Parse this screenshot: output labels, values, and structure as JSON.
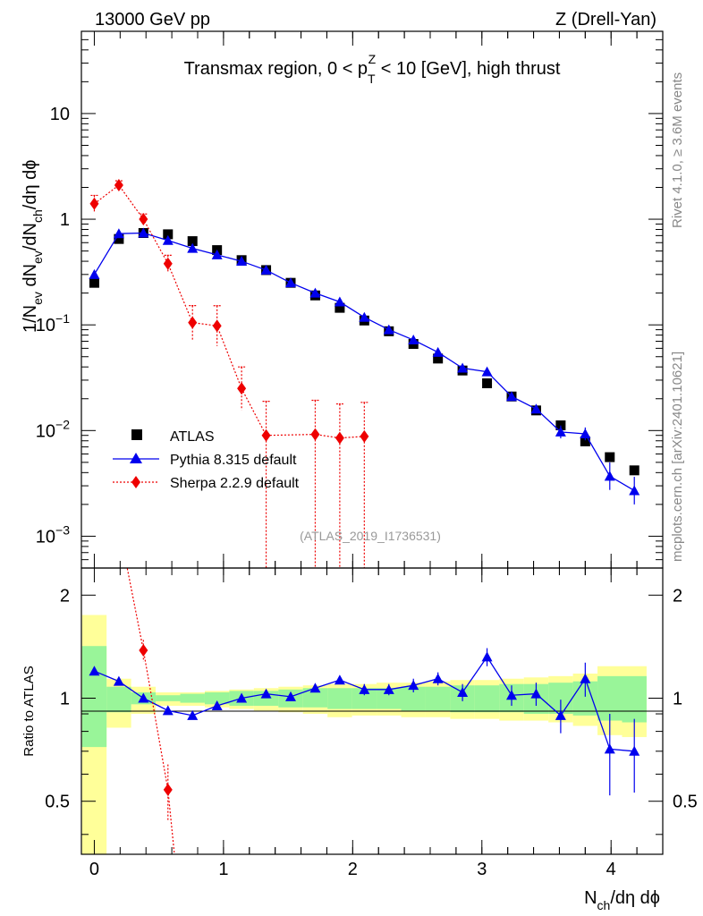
{
  "header": {
    "left": "13000 GeV pp",
    "right": "Z (Drell-Yan)"
  },
  "side_labels": {
    "rivet": "Rivet 4.1.0, ≥ 3.6M events",
    "mcplots": "mcplots.cern.ch [arXiv:2401.10621]"
  },
  "colors": {
    "atlas": "#000000",
    "pythia": "#0000ee",
    "sherpa": "#ee0000",
    "band_1sigma": "#99f599",
    "band_2sigma": "#ffff99"
  },
  "chart_data": [
    {
      "type": "scatter",
      "title_pre": "Transmax region, 0 < p",
      "title_sub": "T",
      "title_sup": "Z",
      "title_post": " < 10 [GeV], high thrust",
      "ylabel_parts": [
        "1/N",
        "ev",
        " dN",
        "ev",
        "/dN",
        "ch",
        "/dη dϕ"
      ],
      "yscale": "log",
      "ylim": [
        0.0005,
        60
      ],
      "xlim": [
        -0.1,
        4.4
      ],
      "y_tick_labels": [
        {
          "value": 10,
          "base": "10",
          "exp": ""
        },
        {
          "value": 1,
          "base": "1",
          "exp": ""
        },
        {
          "value": 0.1,
          "base": "10",
          "exp": "−1"
        },
        {
          "value": 0.01,
          "base": "10",
          "exp": "−2"
        },
        {
          "value": 0.001,
          "base": "10",
          "exp": "−3"
        }
      ],
      "watermark": "(ATLAS_2019_I1736531)",
      "legend": {
        "placement": "lower-left",
        "entries": [
          "ATLAS",
          "Pythia 8.315 default",
          "Sherpa 2.2.9 default"
        ]
      },
      "series": [
        {
          "name": "ATLAS",
          "style": "square-marker",
          "x": [
            0.0,
            0.19,
            0.38,
            0.57,
            0.76,
            0.95,
            1.14,
            1.33,
            1.52,
            1.71,
            1.9,
            2.09,
            2.28,
            2.47,
            2.66,
            2.85,
            3.04,
            3.23,
            3.42,
            3.61,
            3.8,
            3.99,
            4.18
          ],
          "y": [
            0.25,
            0.65,
            0.74,
            0.72,
            0.62,
            0.51,
            0.41,
            0.33,
            0.25,
            0.19,
            0.145,
            0.11,
            0.087,
            0.066,
            0.048,
            0.037,
            0.028,
            0.021,
            0.0155,
            0.0112,
            0.0079,
            0.0056,
            0.0042
          ]
        },
        {
          "name": "Pythia 8.315 default",
          "style": "triangle-line",
          "x": [
            0.0,
            0.19,
            0.38,
            0.57,
            0.76,
            0.95,
            1.14,
            1.33,
            1.52,
            1.71,
            1.9,
            2.09,
            2.28,
            2.47,
            2.66,
            2.85,
            3.04,
            3.23,
            3.42,
            3.61,
            3.8,
            3.99,
            4.18
          ],
          "y": [
            0.3,
            0.73,
            0.74,
            0.63,
            0.53,
            0.46,
            0.4,
            0.33,
            0.25,
            0.2,
            0.165,
            0.118,
            0.09,
            0.072,
            0.055,
            0.039,
            0.036,
            0.021,
            0.016,
            0.0097,
            0.0093,
            0.0037,
            0.0027
          ]
        },
        {
          "name": "Sherpa 2.2.9 default",
          "style": "diamond-dotted",
          "x": [
            0.0,
            0.19,
            0.38,
            0.57,
            0.76,
            0.95,
            1.14,
            1.33,
            1.71,
            1.9,
            2.09
          ],
          "y": [
            1.4,
            2.1,
            1.0,
            0.38,
            0.105,
            0.098,
            0.025,
            0.009,
            0.0092,
            0.0085,
            0.0088
          ]
        }
      ]
    },
    {
      "type": "line",
      "ylabel": "Ratio to ATLAS",
      "yscale": "log",
      "ylim": [
        0.35,
        2.4
      ],
      "xlim": [
        -0.1,
        4.4
      ],
      "xlabel_parts": [
        "N",
        "ch",
        "/dη dϕ"
      ],
      "y_tick_labels": [
        "2",
        "1",
        "0.5"
      ],
      "x_tick_labels": [
        "0",
        "1",
        "2",
        "3",
        "4"
      ],
      "series": [
        {
          "name": "Pythia 8.315 default",
          "x": [
            0.0,
            0.19,
            0.38,
            0.57,
            0.76,
            0.95,
            1.14,
            1.33,
            1.52,
            1.71,
            1.9,
            2.09,
            2.28,
            2.47,
            2.66,
            2.85,
            3.04,
            3.23,
            3.42,
            3.61,
            3.8,
            3.99,
            4.18
          ],
          "y": [
            1.2,
            1.12,
            1.0,
            0.92,
            0.89,
            0.95,
            1.0,
            1.03,
            1.01,
            1.07,
            1.13,
            1.06,
            1.06,
            1.09,
            1.14,
            1.04,
            1.32,
            1.02,
            1.03,
            0.89,
            1.14,
            0.71,
            0.7
          ]
        },
        {
          "name": "Sherpa 2.2.9 default",
          "x": [
            0.38,
            0.57
          ],
          "y": [
            1.38,
            0.54
          ]
        }
      ]
    }
  ]
}
